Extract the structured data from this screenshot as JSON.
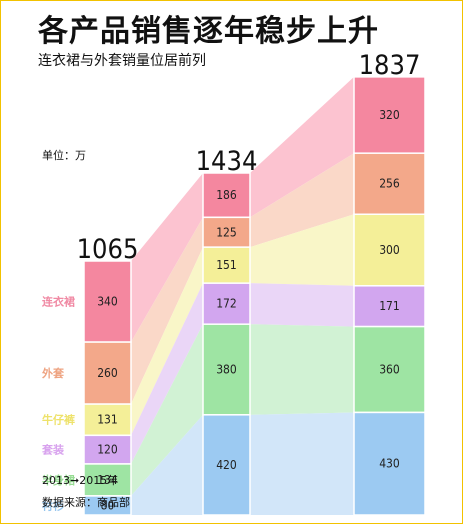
{
  "title": "各产品销售逐年稳步上升",
  "subtitle": "连衣裙与外套销量位居前列",
  "unit_label": "单位：万",
  "footnote_years": "2013➞2015年",
  "footnote_source": "数据来源：商品部",
  "chart_data": {
    "type": "bar",
    "stacked": true,
    "orientation": "vertical",
    "connector_bands": true,
    "legend": "left",
    "grid": false,
    "totals": [
      1065,
      1434,
      1837
    ],
    "categories": [
      "",
      "",
      ""
    ],
    "series": [
      {
        "name": "连衣裙",
        "values": [
          340,
          186,
          320
        ],
        "color": "#f4879f",
        "label_color": "#f08aa4",
        "band_color": "#fcc3d0"
      },
      {
        "name": "外套",
        "values": [
          260,
          125,
          256
        ],
        "color": "#f3a88a",
        "label_color": "#eea381",
        "band_color": "#fad8c8"
      },
      {
        "name": "牛仔裤",
        "values": [
          131,
          151,
          300
        ],
        "color": "#f4ef98",
        "label_color": "#eee26a",
        "band_color": "#f9f6c8"
      },
      {
        "name": "套装",
        "values": [
          120,
          172,
          171
        ],
        "color": "#d2a6ef",
        "label_color": "#d8a2ee",
        "band_color": "#ead6f7"
      },
      {
        "name": "半身裙",
        "values": [
          134,
          380,
          360
        ],
        "color": "#9ee4a3",
        "label_color": "#97dc93",
        "band_color": "#d1f2d4"
      },
      {
        "name": "衬衫",
        "values": [
          80,
          420,
          430
        ],
        "color": "#9ccaf2",
        "label_color": "#97c6ee",
        "band_color": "#d2e6f9"
      }
    ]
  }
}
